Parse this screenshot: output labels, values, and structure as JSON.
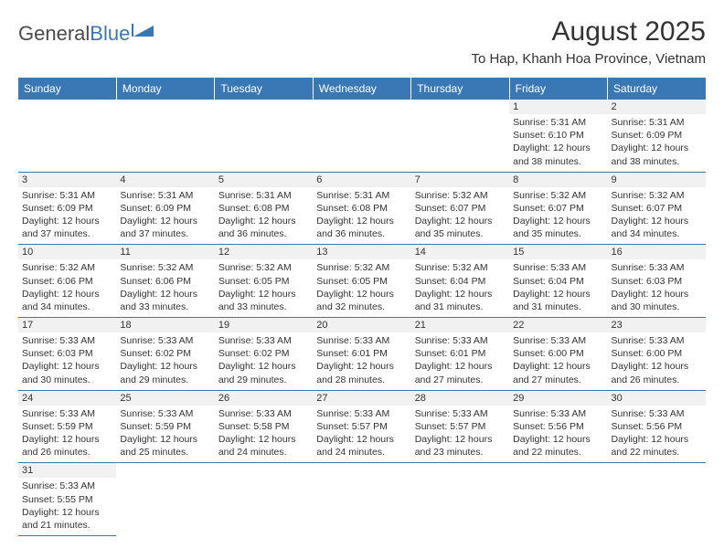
{
  "logo": {
    "word1": "General",
    "word2": "Blue"
  },
  "title": "August 2025",
  "location": "To Hap, Khanh Hoa Province, Vietnam",
  "colors": {
    "headerBg": "#3a78b5",
    "headerText": "#ffffff",
    "dayNumBg": "#f1f1f1",
    "text": "#333333",
    "cellBorder": "#3a78b5",
    "pageBg": "#ffffff"
  },
  "typography": {
    "title_fontsize": 30,
    "location_fontsize": 15,
    "dayheader_fontsize": 12,
    "daynum_fontsize": 11,
    "detail_fontsize": 10.5
  },
  "dayHeaders": [
    "Sunday",
    "Monday",
    "Tuesday",
    "Wednesday",
    "Thursday",
    "Friday",
    "Saturday"
  ],
  "weeks": [
    [
      {
        "n": "",
        "sr": "",
        "ss": "",
        "dl": ""
      },
      {
        "n": "",
        "sr": "",
        "ss": "",
        "dl": ""
      },
      {
        "n": "",
        "sr": "",
        "ss": "",
        "dl": ""
      },
      {
        "n": "",
        "sr": "",
        "ss": "",
        "dl": ""
      },
      {
        "n": "",
        "sr": "",
        "ss": "",
        "dl": ""
      },
      {
        "n": "1",
        "sr": "Sunrise: 5:31 AM",
        "ss": "Sunset: 6:10 PM",
        "dl": "Daylight: 12 hours and 38 minutes."
      },
      {
        "n": "2",
        "sr": "Sunrise: 5:31 AM",
        "ss": "Sunset: 6:09 PM",
        "dl": "Daylight: 12 hours and 38 minutes."
      }
    ],
    [
      {
        "n": "3",
        "sr": "Sunrise: 5:31 AM",
        "ss": "Sunset: 6:09 PM",
        "dl": "Daylight: 12 hours and 37 minutes."
      },
      {
        "n": "4",
        "sr": "Sunrise: 5:31 AM",
        "ss": "Sunset: 6:09 PM",
        "dl": "Daylight: 12 hours and 37 minutes."
      },
      {
        "n": "5",
        "sr": "Sunrise: 5:31 AM",
        "ss": "Sunset: 6:08 PM",
        "dl": "Daylight: 12 hours and 36 minutes."
      },
      {
        "n": "6",
        "sr": "Sunrise: 5:31 AM",
        "ss": "Sunset: 6:08 PM",
        "dl": "Daylight: 12 hours and 36 minutes."
      },
      {
        "n": "7",
        "sr": "Sunrise: 5:32 AM",
        "ss": "Sunset: 6:07 PM",
        "dl": "Daylight: 12 hours and 35 minutes."
      },
      {
        "n": "8",
        "sr": "Sunrise: 5:32 AM",
        "ss": "Sunset: 6:07 PM",
        "dl": "Daylight: 12 hours and 35 minutes."
      },
      {
        "n": "9",
        "sr": "Sunrise: 5:32 AM",
        "ss": "Sunset: 6:07 PM",
        "dl": "Daylight: 12 hours and 34 minutes."
      }
    ],
    [
      {
        "n": "10",
        "sr": "Sunrise: 5:32 AM",
        "ss": "Sunset: 6:06 PM",
        "dl": "Daylight: 12 hours and 34 minutes."
      },
      {
        "n": "11",
        "sr": "Sunrise: 5:32 AM",
        "ss": "Sunset: 6:06 PM",
        "dl": "Daylight: 12 hours and 33 minutes."
      },
      {
        "n": "12",
        "sr": "Sunrise: 5:32 AM",
        "ss": "Sunset: 6:05 PM",
        "dl": "Daylight: 12 hours and 33 minutes."
      },
      {
        "n": "13",
        "sr": "Sunrise: 5:32 AM",
        "ss": "Sunset: 6:05 PM",
        "dl": "Daylight: 12 hours and 32 minutes."
      },
      {
        "n": "14",
        "sr": "Sunrise: 5:32 AM",
        "ss": "Sunset: 6:04 PM",
        "dl": "Daylight: 12 hours and 31 minutes."
      },
      {
        "n": "15",
        "sr": "Sunrise: 5:33 AM",
        "ss": "Sunset: 6:04 PM",
        "dl": "Daylight: 12 hours and 31 minutes."
      },
      {
        "n": "16",
        "sr": "Sunrise: 5:33 AM",
        "ss": "Sunset: 6:03 PM",
        "dl": "Daylight: 12 hours and 30 minutes."
      }
    ],
    [
      {
        "n": "17",
        "sr": "Sunrise: 5:33 AM",
        "ss": "Sunset: 6:03 PM",
        "dl": "Daylight: 12 hours and 30 minutes."
      },
      {
        "n": "18",
        "sr": "Sunrise: 5:33 AM",
        "ss": "Sunset: 6:02 PM",
        "dl": "Daylight: 12 hours and 29 minutes."
      },
      {
        "n": "19",
        "sr": "Sunrise: 5:33 AM",
        "ss": "Sunset: 6:02 PM",
        "dl": "Daylight: 12 hours and 29 minutes."
      },
      {
        "n": "20",
        "sr": "Sunrise: 5:33 AM",
        "ss": "Sunset: 6:01 PM",
        "dl": "Daylight: 12 hours and 28 minutes."
      },
      {
        "n": "21",
        "sr": "Sunrise: 5:33 AM",
        "ss": "Sunset: 6:01 PM",
        "dl": "Daylight: 12 hours and 27 minutes."
      },
      {
        "n": "22",
        "sr": "Sunrise: 5:33 AM",
        "ss": "Sunset: 6:00 PM",
        "dl": "Daylight: 12 hours and 27 minutes."
      },
      {
        "n": "23",
        "sr": "Sunrise: 5:33 AM",
        "ss": "Sunset: 6:00 PM",
        "dl": "Daylight: 12 hours and 26 minutes."
      }
    ],
    [
      {
        "n": "24",
        "sr": "Sunrise: 5:33 AM",
        "ss": "Sunset: 5:59 PM",
        "dl": "Daylight: 12 hours and 26 minutes."
      },
      {
        "n": "25",
        "sr": "Sunrise: 5:33 AM",
        "ss": "Sunset: 5:59 PM",
        "dl": "Daylight: 12 hours and 25 minutes."
      },
      {
        "n": "26",
        "sr": "Sunrise: 5:33 AM",
        "ss": "Sunset: 5:58 PM",
        "dl": "Daylight: 12 hours and 24 minutes."
      },
      {
        "n": "27",
        "sr": "Sunrise: 5:33 AM",
        "ss": "Sunset: 5:57 PM",
        "dl": "Daylight: 12 hours and 24 minutes."
      },
      {
        "n": "28",
        "sr": "Sunrise: 5:33 AM",
        "ss": "Sunset: 5:57 PM",
        "dl": "Daylight: 12 hours and 23 minutes."
      },
      {
        "n": "29",
        "sr": "Sunrise: 5:33 AM",
        "ss": "Sunset: 5:56 PM",
        "dl": "Daylight: 12 hours and 22 minutes."
      },
      {
        "n": "30",
        "sr": "Sunrise: 5:33 AM",
        "ss": "Sunset: 5:56 PM",
        "dl": "Daylight: 12 hours and 22 minutes."
      }
    ],
    [
      {
        "n": "31",
        "sr": "Sunrise: 5:33 AM",
        "ss": "Sunset: 5:55 PM",
        "dl": "Daylight: 12 hours and 21 minutes."
      },
      {
        "n": "",
        "sr": "",
        "ss": "",
        "dl": ""
      },
      {
        "n": "",
        "sr": "",
        "ss": "",
        "dl": ""
      },
      {
        "n": "",
        "sr": "",
        "ss": "",
        "dl": ""
      },
      {
        "n": "",
        "sr": "",
        "ss": "",
        "dl": ""
      },
      {
        "n": "",
        "sr": "",
        "ss": "",
        "dl": ""
      },
      {
        "n": "",
        "sr": "",
        "ss": "",
        "dl": ""
      }
    ]
  ]
}
